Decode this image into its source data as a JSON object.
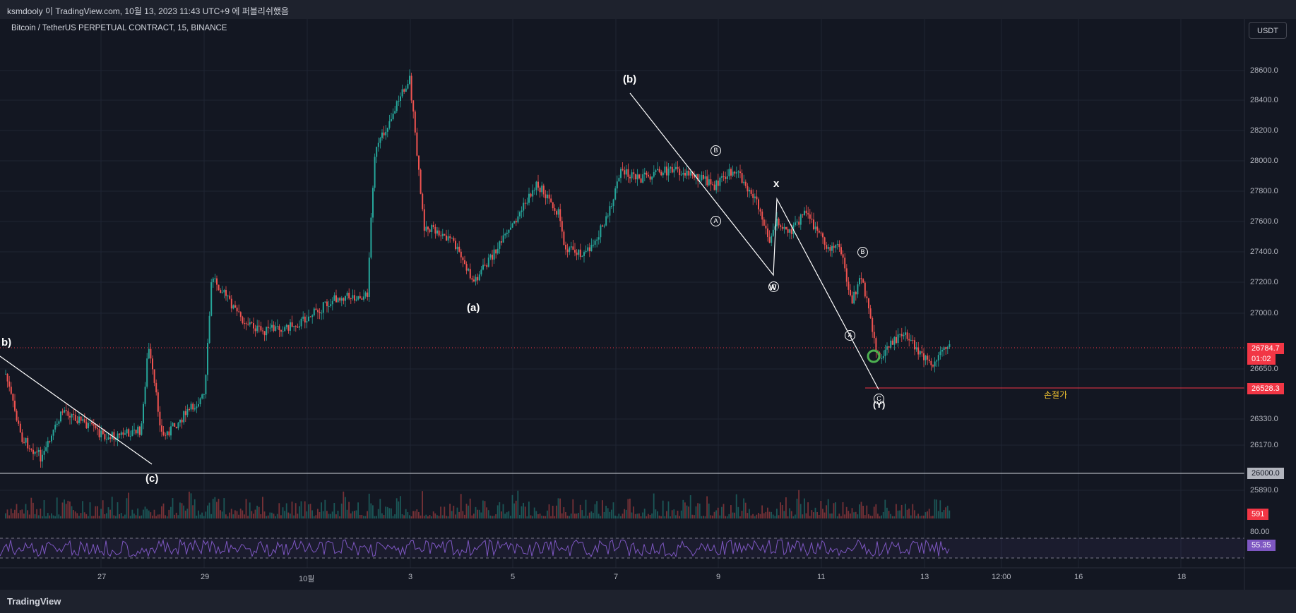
{
  "topbar": {
    "text": "ksmdooly 이 TradingView.com, 10월 13, 2023 11:43 UTC+9 에 퍼블리쉬했음"
  },
  "chart": {
    "title": "Bitcoin / TetherUS PERPETUAL CONTRACT, 15, BINANCE",
    "currency": "USDT",
    "price_scale": [
      "28600.0",
      "28400.0",
      "28200.0",
      "28000.0",
      "27800.0",
      "27600.0",
      "27400.0",
      "27200.0",
      "27000.0",
      "26650.0",
      "26330.0",
      "26170.0",
      "25890.0",
      "80.00"
    ],
    "time_scale": [
      "27",
      "29",
      "10월",
      "3",
      "5",
      "7",
      "9",
      "11",
      "13",
      "12:00",
      "16",
      "18"
    ],
    "last_price": "26784.7",
    "countdown": "01:02",
    "stop_price": "26528.3",
    "support_price": "26000.0",
    "volume_value": "591",
    "rsi_value": "55.35",
    "stop_label": "손절가",
    "wave_labels": {
      "b_prev": "b)",
      "c": "(c)",
      "a": "(a)",
      "b": "(b)",
      "x": "x",
      "w": "W",
      "y": "(Y)"
    },
    "circle_labels": {
      "A": "A",
      "B": "B",
      "C": "C"
    },
    "colors": {
      "bg": "#131722",
      "up": "#26a69a",
      "down": "#ef5350",
      "rsi": "#7e57c2",
      "last_price_badge": "#f23645",
      "stop_line": "#f23645",
      "stop_label": "#f0c330"
    }
  },
  "footer": {
    "brand": "TradingView"
  }
}
